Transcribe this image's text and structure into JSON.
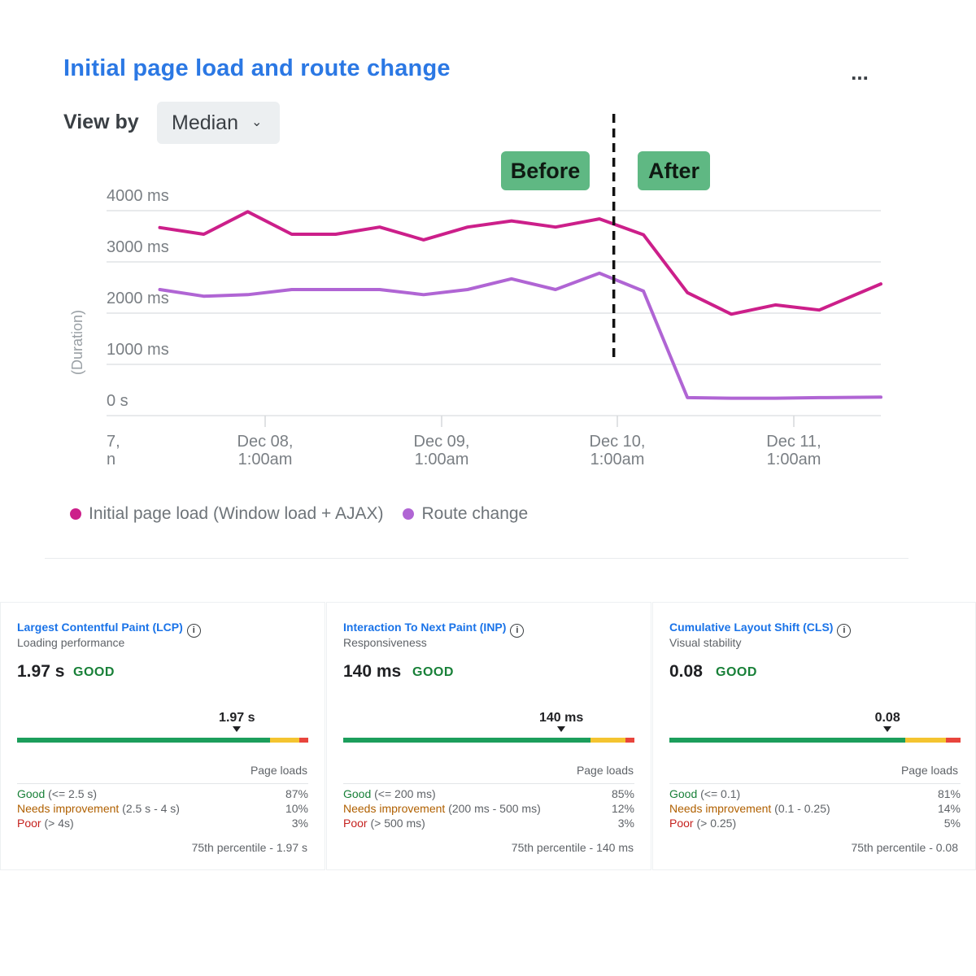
{
  "chart_panel": {
    "title": "Initial page load and route change",
    "more_label": "...",
    "view_by_label": "View by",
    "view_by_value": "Median",
    "before_tag": "Before",
    "after_tag": "After",
    "y_axis_label": "(Duration)"
  },
  "chart_data": {
    "type": "line",
    "title": "Initial page load and route change",
    "ylabel": "(Duration)",
    "xlabel": "",
    "ylim": [
      0,
      4000
    ],
    "y_ticks": [
      {
        "value": 4000,
        "label": "4000 ms"
      },
      {
        "value": 3000,
        "label": "3000 ms"
      },
      {
        "value": 2000,
        "label": "2000 ms"
      },
      {
        "value": 1000,
        "label": "1000 ms"
      },
      {
        "value": 0,
        "label": "0 s"
      }
    ],
    "x_ticks": [
      {
        "x": 0,
        "line1": "7,",
        "line2": "n"
      },
      {
        "x": 1,
        "line1": "Dec 08,",
        "line2": "1:00am"
      },
      {
        "x": 2,
        "line1": "Dec 09,",
        "line2": "1:00am"
      },
      {
        "x": 3,
        "line1": "Dec 10,",
        "line2": "1:00am"
      },
      {
        "x": 4,
        "line1": "Dec 11,",
        "line2": "1:00am"
      }
    ],
    "x_range": [
      0,
      4.5
    ],
    "divider_x": 3,
    "series": [
      {
        "name": "Initial page load (Window load + AJAX)",
        "color": "#cc1f8a",
        "x": [
          0.4,
          0.65,
          0.9,
          1.15,
          1.4,
          1.65,
          1.9,
          2.15,
          2.4,
          2.65,
          2.9,
          3.15,
          3.4,
          3.65,
          3.9,
          4.15,
          4.5
        ],
        "values": [
          3670,
          3540,
          3980,
          3540,
          3540,
          3680,
          3430,
          3680,
          3800,
          3680,
          3840,
          3530,
          2400,
          1980,
          2160,
          2060,
          2570
        ]
      },
      {
        "name": "Route change",
        "color": "#b065d4",
        "x": [
          0.4,
          0.65,
          0.9,
          1.15,
          1.4,
          1.65,
          1.9,
          2.15,
          2.4,
          2.65,
          2.9,
          3.15,
          3.4,
          3.65,
          3.9,
          4.15,
          4.5
        ],
        "values": [
          2460,
          2330,
          2360,
          2460,
          2460,
          2460,
          2360,
          2460,
          2670,
          2460,
          2780,
          2430,
          350,
          340,
          340,
          350,
          360
        ]
      }
    ],
    "legend": [
      "Initial page load (Window load + AJAX)",
      "Route change"
    ]
  },
  "metrics": [
    {
      "title": "Largest Contentful Paint (LCP)",
      "info_icon": "i",
      "subtitle": "Loading performance",
      "value": "1.97 s",
      "status": "GOOD",
      "marker_label": "1.97 s",
      "marker_position": 0.755,
      "distribution": {
        "good": 87,
        "needs_improvement": 10,
        "poor": 3
      },
      "page_loads_label": "Page loads",
      "rows": [
        {
          "label": "Good",
          "range": "(<= 2.5 s)",
          "pct": "87%"
        },
        {
          "label": "Needs improvement",
          "range": "(2.5 s - 4 s)",
          "pct": "10%"
        },
        {
          "label": "Poor",
          "range": "(> 4s)",
          "pct": "3%"
        }
      ],
      "p75": "75th percentile - 1.97 s"
    },
    {
      "title": "Interaction To Next Paint (INP)",
      "info_icon": "i",
      "subtitle": "Responsiveness",
      "value": "140 ms",
      "status": "GOOD",
      "marker_label": "140 ms",
      "marker_position": 0.749,
      "distribution": {
        "good": 85,
        "needs_improvement": 12,
        "poor": 3
      },
      "page_loads_label": "Page loads",
      "rows": [
        {
          "label": "Good",
          "range": "(<= 200 ms)",
          "pct": "85%"
        },
        {
          "label": "Needs improvement",
          "range": "(200 ms - 500 ms)",
          "pct": "12%"
        },
        {
          "label": "Poor",
          "range": "(> 500 ms)",
          "pct": "3%"
        }
      ],
      "p75": "75th percentile - 140 ms"
    },
    {
      "title": "Cumulative Layout Shift (CLS)",
      "info_icon": "i",
      "subtitle": "Visual stability",
      "value": "0.08",
      "status": "GOOD",
      "marker_label": "0.08",
      "marker_position": 0.749,
      "distribution": {
        "good": 81,
        "needs_improvement": 14,
        "poor": 5
      },
      "page_loads_label": "Page loads",
      "rows": [
        {
          "label": "Good",
          "range": "(<= 0.1)",
          "pct": "81%"
        },
        {
          "label": "Needs improvement",
          "range": "(0.1 - 0.25)",
          "pct": "14%"
        },
        {
          "label": "Poor",
          "range": "(> 0.25)",
          "pct": "5%"
        }
      ],
      "p75": "75th percentile - 0.08"
    }
  ],
  "colors": {
    "good": "#1c9e5c",
    "needs_improvement": "#f4c430",
    "poor": "#e8453c",
    "title_blue": "#2b78e4",
    "tag_green": "#5fb883"
  }
}
